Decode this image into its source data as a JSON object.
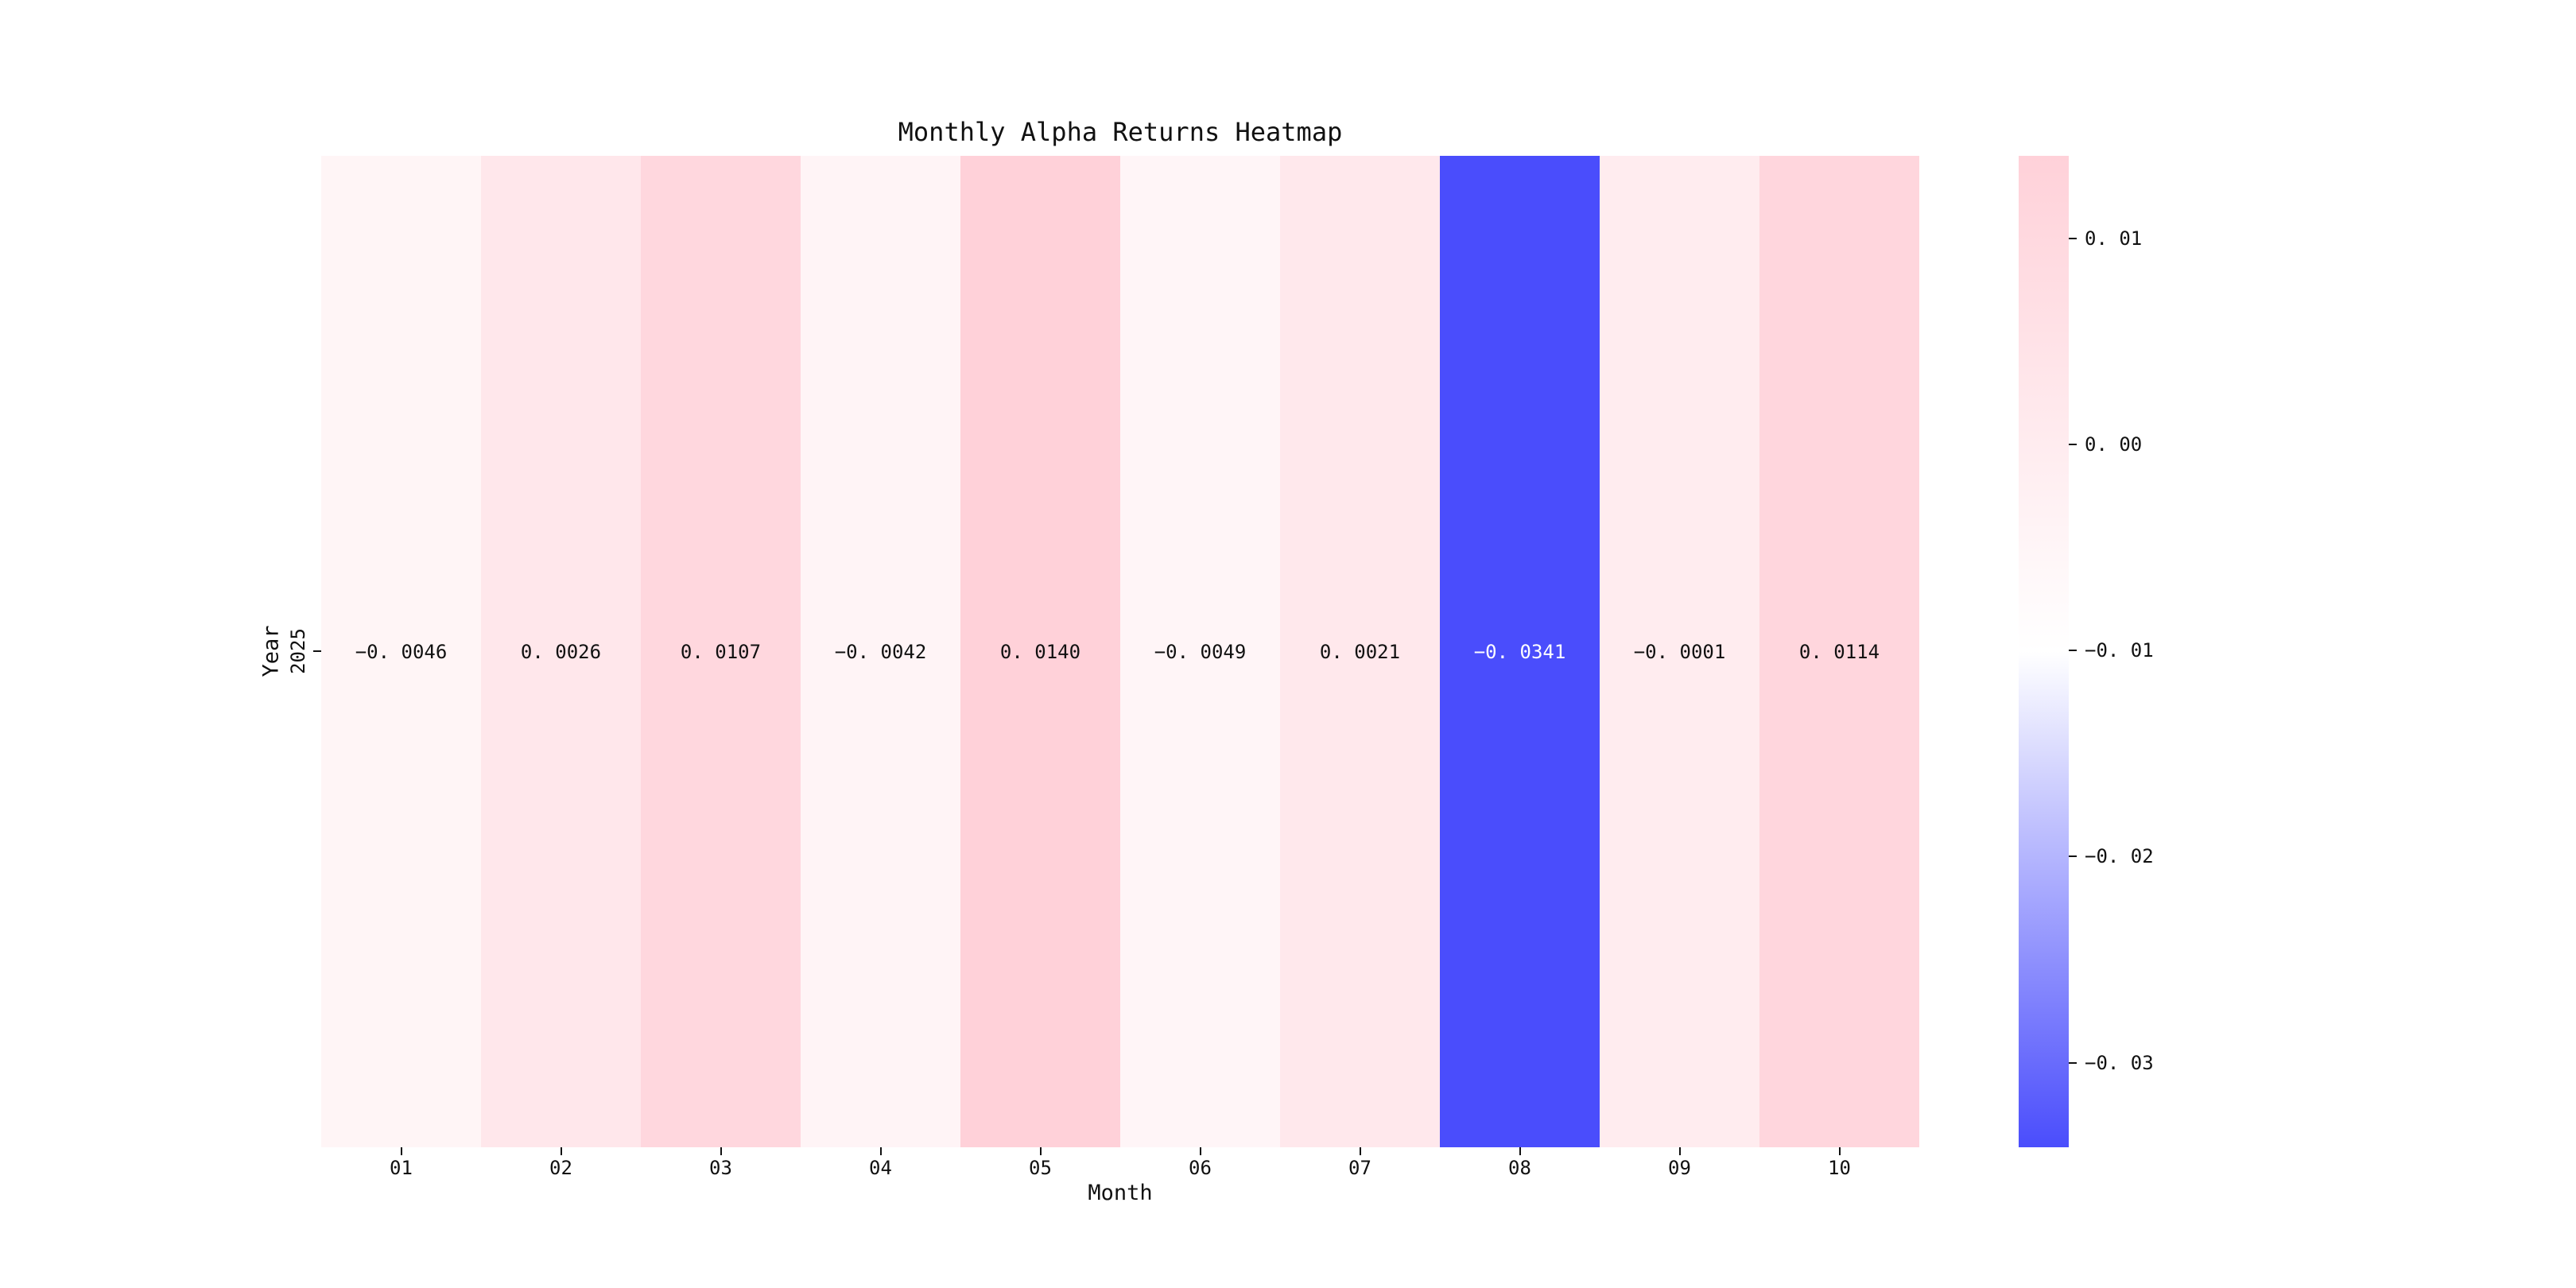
{
  "title": "Monthly Alpha Returns Heatmap",
  "axes": {
    "xlabel": "Month",
    "ylabel": "Year",
    "x_tick_labels": [
      "01",
      "02",
      "03",
      "04",
      "05",
      "06",
      "07",
      "08",
      "09",
      "10"
    ],
    "y_tick_labels": [
      "2025"
    ]
  },
  "cells": {
    "labels": [
      "−0. 0046",
      "0. 0026",
      "0. 0107",
      "−0. 0042",
      "0. 0140",
      "−0. 0049",
      "0. 0021",
      "−0. 0341",
      "−0. 0001",
      "0. 0114"
    ]
  },
  "colorbar": {
    "tick_labels": [
      "0. 01",
      "0. 00",
      "−0. 01",
      "−0. 02",
      "−0. 03"
    ],
    "tick_values": [
      0.01,
      0.0,
      -0.01,
      -0.02,
      -0.03
    ],
    "max_color": "#ffd1d9",
    "mid_color": "#ffffff",
    "min_color": "#4a4dfc"
  },
  "text_colors": {
    "dark": "#111111",
    "light": "#ffffff"
  },
  "chart_data": {
    "type": "heatmap",
    "title": "Monthly Alpha Returns Heatmap",
    "xlabel": "Month",
    "ylabel": "Year",
    "columns": [
      "01",
      "02",
      "03",
      "04",
      "05",
      "06",
      "07",
      "08",
      "09",
      "10"
    ],
    "rows": [
      "2025"
    ],
    "values": [
      [
        -0.0046,
        0.0026,
        0.0107,
        -0.0042,
        0.014,
        -0.0049,
        0.0021,
        -0.0341,
        -0.0001,
        0.0114
      ]
    ],
    "vmin": -0.0341,
    "vmax": 0.014,
    "colorbar_ticks": [
      0.01,
      0.0,
      -0.01,
      -0.02,
      -0.03
    ],
    "colormap": {
      "min": "#4a4dfc",
      "mid": "#ffffff",
      "max": "#ffd1d9"
    },
    "legend_position": "right",
    "grid": false,
    "annotated": true
  }
}
